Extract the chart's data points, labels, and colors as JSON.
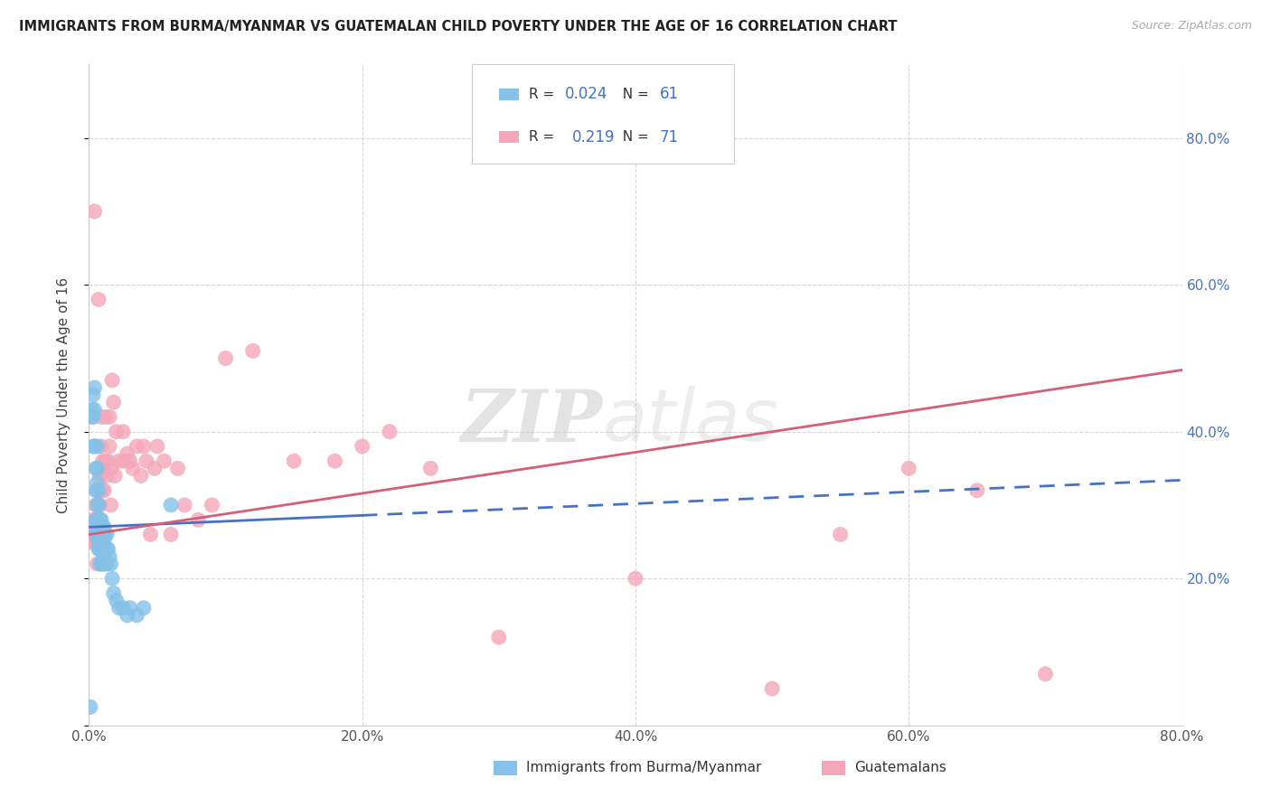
{
  "title": "IMMIGRANTS FROM BURMA/MYANMAR VS GUATEMALAN CHILD POVERTY UNDER THE AGE OF 16 CORRELATION CHART",
  "source": "Source: ZipAtlas.com",
  "ylabel": "Child Poverty Under the Age of 16",
  "xlim": [
    0.0,
    0.8
  ],
  "ylim": [
    0.0,
    0.9
  ],
  "xticks": [
    0.0,
    0.2,
    0.4,
    0.6,
    0.8
  ],
  "xticklabels": [
    "0.0%",
    "20.0%",
    "40.0%",
    "60.0%",
    "80.0%"
  ],
  "yticks_right": [
    0.2,
    0.4,
    0.6,
    0.8
  ],
  "yticklabels_right": [
    "20.0%",
    "40.0%",
    "60.0%",
    "80.0%"
  ],
  "legend_R_blue": "0.024",
  "legend_N_blue": "61",
  "legend_R_pink": "0.219",
  "legend_N_pink": "71",
  "color_blue": "#85C1E8",
  "color_pink": "#F4A7B9",
  "color_line_blue": "#4472C4",
  "color_line_pink": "#D45F7A",
  "watermark_zip": "ZIP",
  "watermark_atlas": "atlas",
  "blue_x": [
    0.001,
    0.002,
    0.002,
    0.003,
    0.003,
    0.003,
    0.004,
    0.004,
    0.004,
    0.005,
    0.005,
    0.005,
    0.005,
    0.006,
    0.006,
    0.006,
    0.006,
    0.006,
    0.006,
    0.007,
    0.007,
    0.007,
    0.007,
    0.007,
    0.007,
    0.008,
    0.008,
    0.008,
    0.008,
    0.008,
    0.009,
    0.009,
    0.009,
    0.009,
    0.009,
    0.01,
    0.01,
    0.01,
    0.01,
    0.011,
    0.011,
    0.011,
    0.012,
    0.012,
    0.012,
    0.013,
    0.013,
    0.013,
    0.014,
    0.015,
    0.016,
    0.017,
    0.018,
    0.02,
    0.022,
    0.025,
    0.028,
    0.03,
    0.035,
    0.04,
    0.06
  ],
  "blue_y": [
    0.025,
    0.42,
    0.43,
    0.45,
    0.42,
    0.38,
    0.46,
    0.43,
    0.38,
    0.35,
    0.32,
    0.28,
    0.26,
    0.38,
    0.35,
    0.33,
    0.3,
    0.28,
    0.26,
    0.32,
    0.3,
    0.28,
    0.26,
    0.25,
    0.24,
    0.28,
    0.26,
    0.25,
    0.24,
    0.22,
    0.28,
    0.26,
    0.25,
    0.24,
    0.22,
    0.27,
    0.26,
    0.24,
    0.22,
    0.27,
    0.25,
    0.23,
    0.26,
    0.24,
    0.22,
    0.26,
    0.24,
    0.22,
    0.24,
    0.23,
    0.22,
    0.2,
    0.18,
    0.17,
    0.16,
    0.16,
    0.15,
    0.16,
    0.15,
    0.16,
    0.3
  ],
  "pink_x": [
    0.001,
    0.002,
    0.002,
    0.003,
    0.003,
    0.004,
    0.004,
    0.004,
    0.005,
    0.005,
    0.005,
    0.006,
    0.006,
    0.006,
    0.006,
    0.007,
    0.007,
    0.007,
    0.008,
    0.008,
    0.009,
    0.009,
    0.01,
    0.01,
    0.011,
    0.011,
    0.012,
    0.012,
    0.013,
    0.014,
    0.015,
    0.015,
    0.016,
    0.016,
    0.017,
    0.018,
    0.019,
    0.02,
    0.022,
    0.025,
    0.025,
    0.028,
    0.03,
    0.032,
    0.035,
    0.038,
    0.04,
    0.042,
    0.045,
    0.048,
    0.05,
    0.055,
    0.06,
    0.065,
    0.07,
    0.08,
    0.09,
    0.1,
    0.12,
    0.15,
    0.18,
    0.2,
    0.22,
    0.25,
    0.3,
    0.4,
    0.5,
    0.55,
    0.6,
    0.65,
    0.7
  ],
  "pink_y": [
    0.25,
    0.27,
    0.25,
    0.28,
    0.25,
    0.7,
    0.27,
    0.25,
    0.3,
    0.27,
    0.25,
    0.32,
    0.28,
    0.25,
    0.22,
    0.58,
    0.3,
    0.27,
    0.34,
    0.3,
    0.42,
    0.38,
    0.36,
    0.32,
    0.35,
    0.32,
    0.42,
    0.36,
    0.34,
    0.36,
    0.42,
    0.38,
    0.35,
    0.3,
    0.47,
    0.44,
    0.34,
    0.4,
    0.36,
    0.4,
    0.36,
    0.37,
    0.36,
    0.35,
    0.38,
    0.34,
    0.38,
    0.36,
    0.26,
    0.35,
    0.38,
    0.36,
    0.26,
    0.35,
    0.3,
    0.28,
    0.3,
    0.5,
    0.51,
    0.36,
    0.36,
    0.38,
    0.4,
    0.35,
    0.12,
    0.2,
    0.05,
    0.26,
    0.35,
    0.32,
    0.07
  ],
  "blue_line_solid_end": 0.2,
  "blue_line_intercept": 0.27,
  "blue_line_slope": 0.08,
  "pink_line_intercept": 0.26,
  "pink_line_slope": 0.28
}
